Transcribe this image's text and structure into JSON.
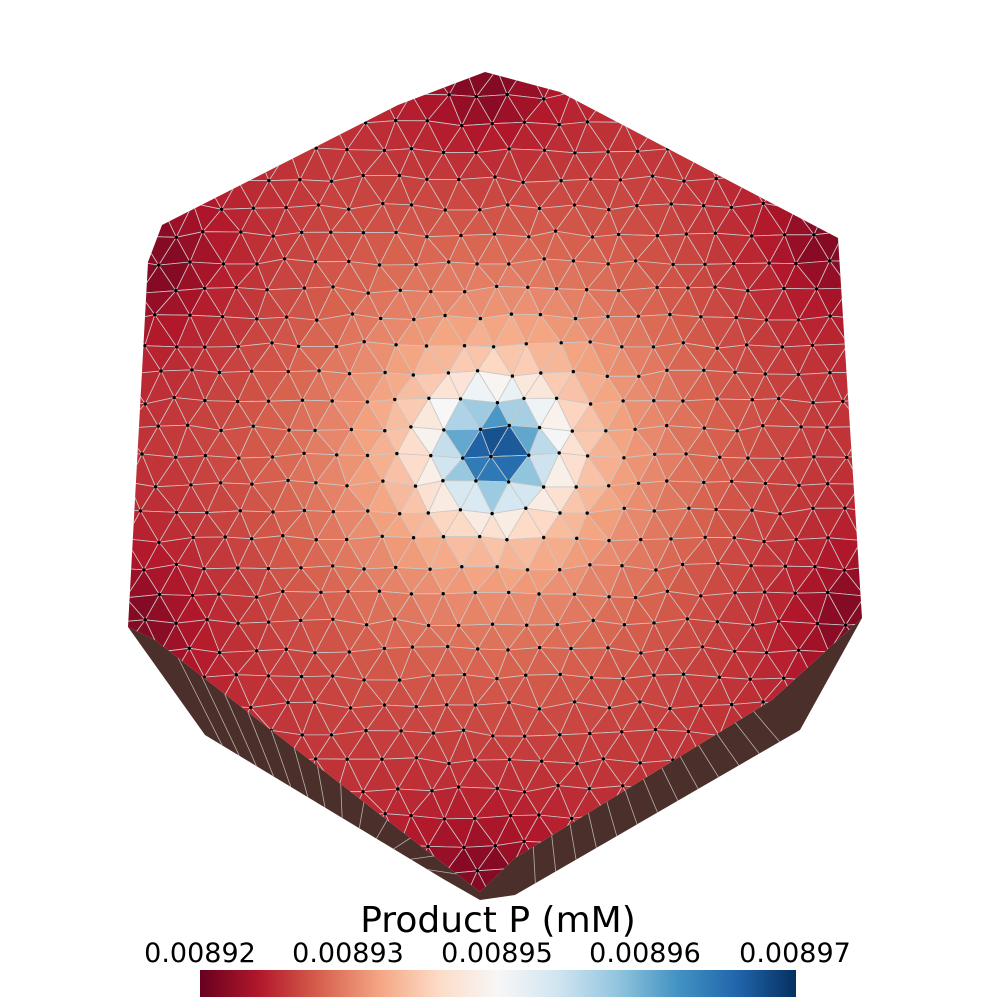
{
  "colorbar": {
    "title": "Product P (mM)",
    "tick_labels": [
      "0.00892",
      "0.00893",
      "0.00895",
      "0.00896",
      "0.00897"
    ],
    "range": [
      0.00892,
      0.00897
    ],
    "colormap": [
      "#67001f",
      "#b2182b",
      "#d6604d",
      "#f4a582",
      "#fddbc7",
      "#f7f7f7",
      "#d1e5f0",
      "#92c5de",
      "#4393c3",
      "#2166ac",
      "#053061"
    ]
  },
  "mesh": {
    "shape": "hexagonal prism, top face viewed from above",
    "field_pattern": "minimum at outer corners (dark red), rising toward center, peak concentrated at center (dark navy)",
    "edge_color": "#c8c8c8",
    "node_color": "#000000",
    "side_wall_color": "#4a2f2a"
  }
}
